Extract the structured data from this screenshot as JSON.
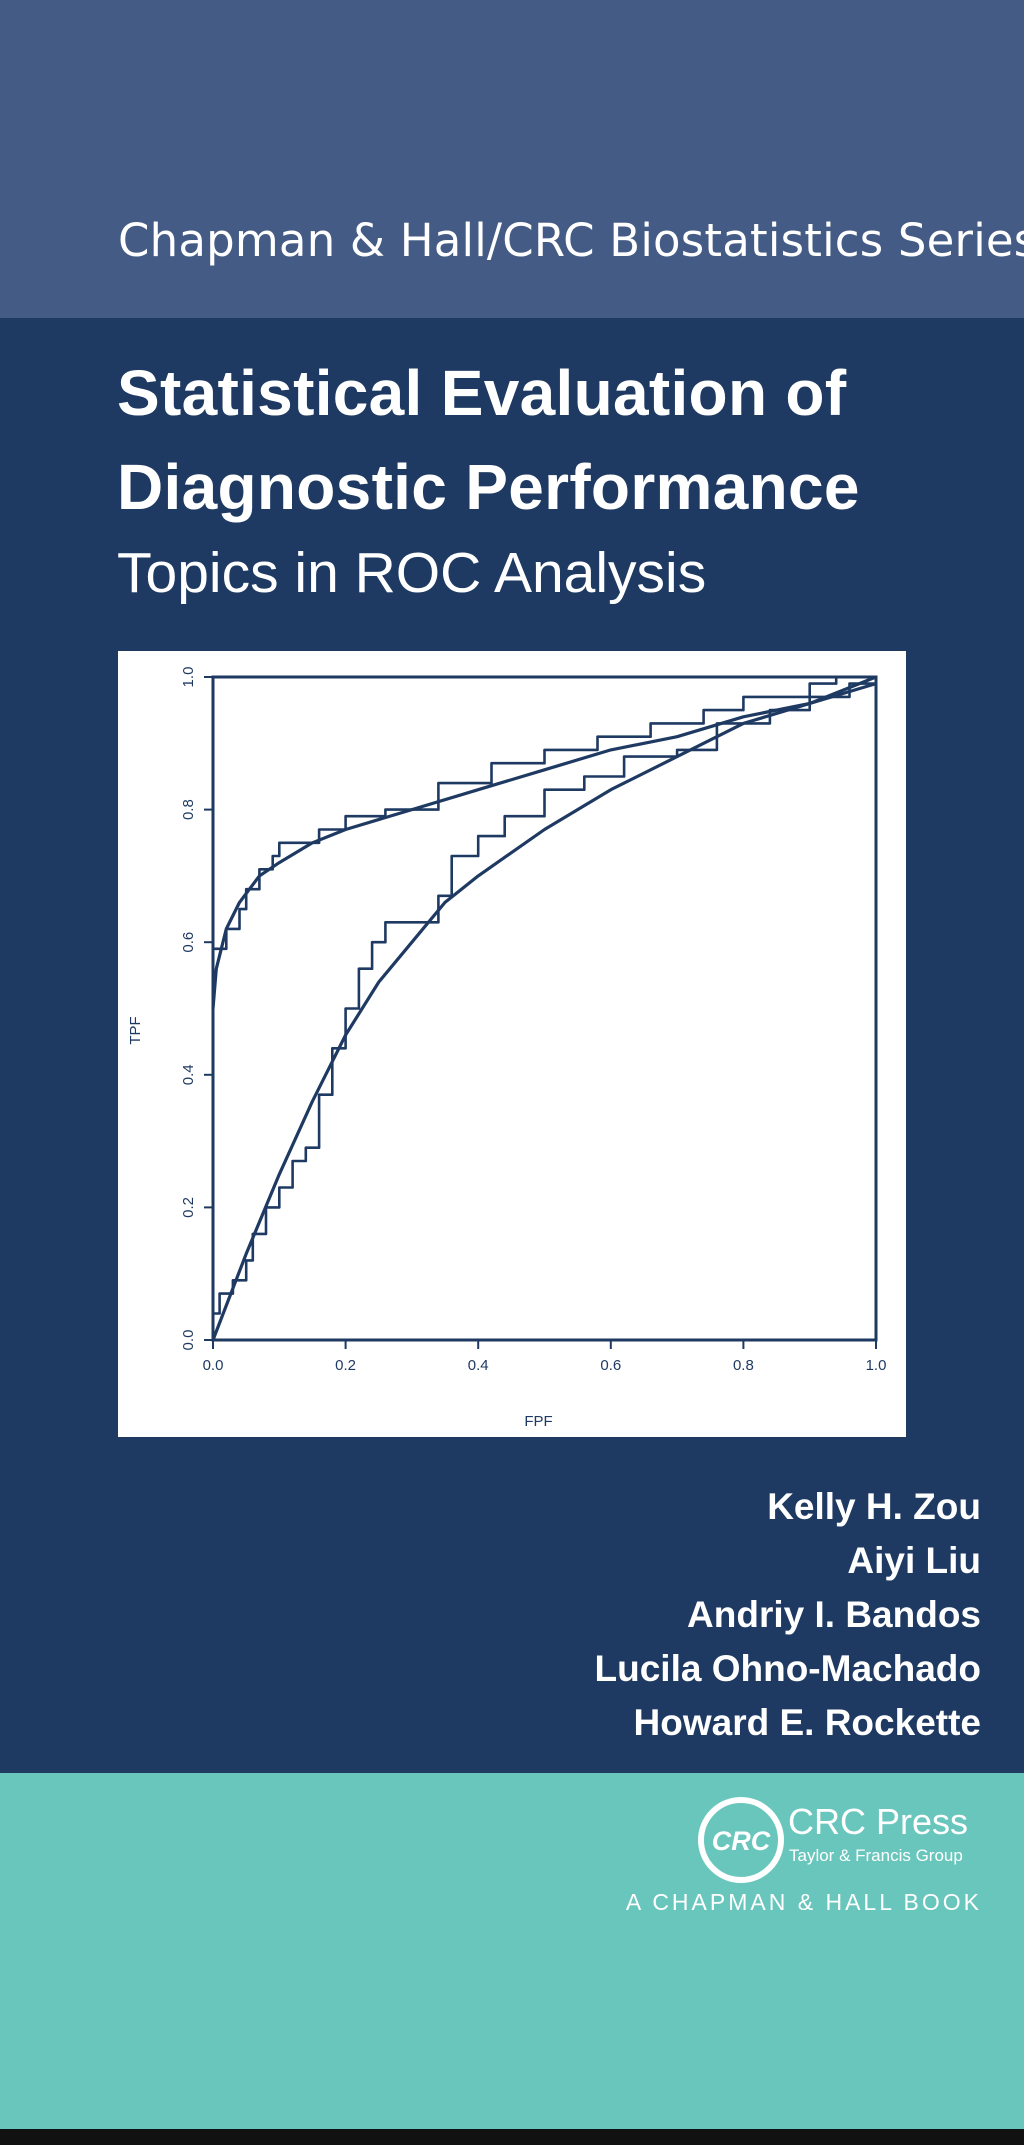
{
  "series": {
    "title": "Chapman & Hall/CRC Biostatistics Series"
  },
  "book": {
    "title_line1": "Statistical Evaluation of",
    "title_line2": "Diagnostic Performance",
    "subtitle": "Topics in ROC Analysis"
  },
  "authors": [
    "Kelly H. Zou",
    "Aiyi Liu",
    "Andriy I. Bandos",
    "Lucila Ohno-Machado",
    "Howard E. Rockette"
  ],
  "publisher": {
    "logo_text": "CRC",
    "name": "CRC Press",
    "group": "Taylor & Francis Group",
    "imprint": "A CHAPMAN & HALL BOOK"
  },
  "colors": {
    "series_band": "#445b85",
    "main_band": "#1f3a62",
    "publisher_band": "#69c6bc",
    "plot_ink": "#1f3a62"
  },
  "chart_data": {
    "type": "line",
    "xlabel": "FPF",
    "ylabel": "TPF",
    "xlim": [
      0,
      1
    ],
    "ylim": [
      0,
      1
    ],
    "xticks": [
      "0.0",
      "0.2",
      "0.4",
      "0.6",
      "0.8",
      "1.0"
    ],
    "yticks": [
      "0.0",
      "0.2",
      "0.4",
      "0.6",
      "0.8",
      "1.0"
    ],
    "grid": false,
    "series": [
      {
        "kind": "empirical-step",
        "x": [
          0,
          0,
          0.02,
          0.02,
          0.04,
          0.04,
          0.05,
          0.05,
          0.07,
          0.07,
          0.09,
          0.09,
          0.1,
          0.1,
          0.16,
          0.16,
          0.2,
          0.2,
          0.26,
          0.26,
          0.34,
          0.34,
          0.42,
          0.42,
          0.5,
          0.5,
          0.58,
          0.58,
          0.66,
          0.66,
          0.74,
          0.74,
          0.8,
          0.8,
          0.9,
          0.9,
          0.94,
          0.94,
          1.0
        ],
        "y": [
          0,
          0.59,
          0.59,
          0.62,
          0.62,
          0.65,
          0.65,
          0.68,
          0.68,
          0.71,
          0.71,
          0.73,
          0.73,
          0.75,
          0.75,
          0.77,
          0.77,
          0.79,
          0.79,
          0.8,
          0.8,
          0.84,
          0.84,
          0.87,
          0.87,
          0.89,
          0.89,
          0.91,
          0.91,
          0.93,
          0.93,
          0.95,
          0.95,
          0.97,
          0.97,
          0.99,
          0.99,
          1.0,
          1.0
        ]
      },
      {
        "kind": "smooth-fit",
        "x": [
          0,
          0.005,
          0.02,
          0.04,
          0.07,
          0.1,
          0.15,
          0.2,
          0.3,
          0.4,
          0.5,
          0.6,
          0.7,
          0.8,
          0.9,
          1.0
        ],
        "y": [
          0.5,
          0.56,
          0.62,
          0.66,
          0.7,
          0.72,
          0.75,
          0.77,
          0.8,
          0.83,
          0.86,
          0.89,
          0.91,
          0.94,
          0.96,
          1.0
        ]
      },
      {
        "kind": "empirical-step",
        "x": [
          0,
          0,
          0.01,
          0.01,
          0.03,
          0.03,
          0.05,
          0.05,
          0.06,
          0.06,
          0.08,
          0.08,
          0.1,
          0.1,
          0.12,
          0.12,
          0.14,
          0.14,
          0.16,
          0.16,
          0.18,
          0.18,
          0.2,
          0.2,
          0.22,
          0.22,
          0.24,
          0.24,
          0.26,
          0.26,
          0.34,
          0.34,
          0.36,
          0.36,
          0.4,
          0.4,
          0.44,
          0.44,
          0.5,
          0.5,
          0.56,
          0.56,
          0.62,
          0.62,
          0.7,
          0.7,
          0.76,
          0.76,
          0.84,
          0.84,
          0.9,
          0.9,
          0.96,
          0.96,
          1.0
        ],
        "y": [
          0,
          0.04,
          0.04,
          0.07,
          0.07,
          0.09,
          0.09,
          0.12,
          0.12,
          0.16,
          0.16,
          0.2,
          0.2,
          0.23,
          0.23,
          0.27,
          0.27,
          0.29,
          0.29,
          0.37,
          0.37,
          0.44,
          0.44,
          0.5,
          0.5,
          0.56,
          0.56,
          0.6,
          0.6,
          0.63,
          0.63,
          0.67,
          0.67,
          0.73,
          0.73,
          0.76,
          0.76,
          0.79,
          0.79,
          0.83,
          0.83,
          0.85,
          0.85,
          0.88,
          0.88,
          0.89,
          0.89,
          0.93,
          0.93,
          0.95,
          0.95,
          0.97,
          0.97,
          0.99,
          0.99
        ]
      },
      {
        "kind": "smooth-fit",
        "x": [
          0,
          0.05,
          0.1,
          0.15,
          0.2,
          0.25,
          0.3,
          0.35,
          0.4,
          0.5,
          0.6,
          0.7,
          0.8,
          0.9,
          1.0
        ],
        "y": [
          0,
          0.13,
          0.25,
          0.36,
          0.46,
          0.54,
          0.6,
          0.66,
          0.7,
          0.77,
          0.83,
          0.88,
          0.93,
          0.96,
          0.99
        ]
      }
    ]
  }
}
